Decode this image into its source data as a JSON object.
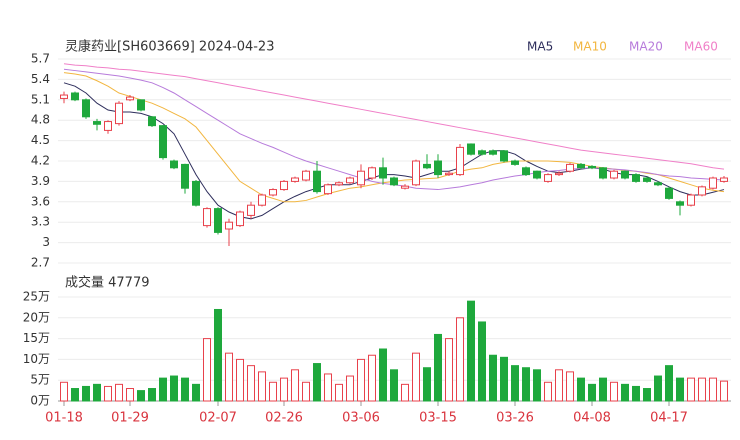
{
  "chart_data": {
    "type": "candlestick",
    "title": "灵康药业[SH603669] 2024-04-23",
    "categories": [
      "01-18",
      null,
      null,
      null,
      null,
      null,
      "01-29",
      null,
      null,
      null,
      null,
      null,
      null,
      null,
      "02-07",
      null,
      null,
      null,
      null,
      null,
      "02-26",
      null,
      null,
      null,
      null,
      null,
      null,
      "03-06",
      null,
      null,
      null,
      null,
      null,
      null,
      "03-15",
      null,
      null,
      null,
      null,
      null,
      null,
      "03-26",
      null,
      null,
      null,
      null,
      null,
      null,
      "04-08",
      null,
      null,
      null,
      null,
      null,
      null,
      "04-17",
      null,
      null,
      null,
      null,
      null
    ],
    "open": [
      5.12,
      5.2,
      5.1,
      4.78,
      4.65,
      4.75,
      5.1,
      5.1,
      4.85,
      4.72,
      4.2,
      4.15,
      3.9,
      3.25,
      3.5,
      3.2,
      3.25,
      3.4,
      3.55,
      3.7,
      3.78,
      3.9,
      3.92,
      4.05,
      3.72,
      3.85,
      3.88,
      3.85,
      3.95,
      4.1,
      3.95,
      3.8,
      3.85,
      4.15,
      4.2,
      4.0,
      4.0,
      4.45,
      4.35,
      4.35,
      4.35,
      4.2,
      4.1,
      4.05,
      3.9,
      4.0,
      4.05,
      4.15,
      4.12,
      4.1,
      3.95,
      4.05,
      4.0,
      3.95,
      3.88,
      3.8,
      3.6,
      3.55,
      3.7,
      3.8,
      3.9
    ],
    "high": [
      5.22,
      5.22,
      5.12,
      4.82,
      4.8,
      5.08,
      5.17,
      5.1,
      4.86,
      4.73,
      4.22,
      4.16,
      3.92,
      3.52,
      3.52,
      3.35,
      3.47,
      3.6,
      3.72,
      3.8,
      3.92,
      3.97,
      4.07,
      4.2,
      3.87,
      3.9,
      3.97,
      4.15,
      4.12,
      4.25,
      3.97,
      3.86,
      4.22,
      4.3,
      4.3,
      4.05,
      4.45,
      4.46,
      4.37,
      4.37,
      4.36,
      4.22,
      4.12,
      4.06,
      4.02,
      4.05,
      4.17,
      4.17,
      4.14,
      4.11,
      4.07,
      4.06,
      4.02,
      3.97,
      3.9,
      3.82,
      3.62,
      3.72,
      3.84,
      3.97,
      3.98
    ],
    "low": [
      5.05,
      5.08,
      4.82,
      4.65,
      4.6,
      4.72,
      5.08,
      4.93,
      4.7,
      4.22,
      4.08,
      3.72,
      3.53,
      3.22,
      3.12,
      2.95,
      3.23,
      3.35,
      3.53,
      3.68,
      3.76,
      3.88,
      3.9,
      3.72,
      3.7,
      3.83,
      3.86,
      3.8,
      3.92,
      3.85,
      3.83,
      3.78,
      3.83,
      4.08,
      3.95,
      3.98,
      3.98,
      4.28,
      4.28,
      4.28,
      4.18,
      4.13,
      3.98,
      3.93,
      3.88,
      3.98,
      4.03,
      4.08,
      4.08,
      3.93,
      3.93,
      3.93,
      3.88,
      3.88,
      3.83,
      3.63,
      3.4,
      3.53,
      3.68,
      3.78,
      3.88
    ],
    "close": [
      5.17,
      5.1,
      4.85,
      4.74,
      4.78,
      5.05,
      5.14,
      4.95,
      4.72,
      4.25,
      4.1,
      3.8,
      3.55,
      3.5,
      3.15,
      3.3,
      3.45,
      3.55,
      3.7,
      3.78,
      3.9,
      3.95,
      4.05,
      3.75,
      3.85,
      3.88,
      3.95,
      4.05,
      4.1,
      3.95,
      3.85,
      3.83,
      4.2,
      4.1,
      4.0,
      4.02,
      4.4,
      4.3,
      4.3,
      4.3,
      4.2,
      4.15,
      4.0,
      3.95,
      4.0,
      4.02,
      4.15,
      4.1,
      4.1,
      3.95,
      4.05,
      3.95,
      3.9,
      3.9,
      3.85,
      3.65,
      3.55,
      3.7,
      3.82,
      3.95,
      3.95
    ],
    "up_color": "#e8414b",
    "down_color": "#1ea83c",
    "ylim": [
      2.7,
      5.7
    ],
    "yticks": [
      2.7,
      3,
      3.3,
      3.6,
      3.9,
      4.2,
      4.5,
      4.8,
      5.1,
      5.4,
      5.7
    ],
    "grid": true,
    "ma": [
      {
        "name": "MA5",
        "color": "#2e2e5c",
        "values": [
          5.35,
          5.3,
          5.2,
          5.05,
          4.95,
          4.92,
          4.92,
          4.9,
          4.85,
          4.75,
          4.6,
          4.3,
          4.0,
          3.75,
          3.55,
          3.45,
          3.38,
          3.35,
          3.4,
          3.5,
          3.6,
          3.68,
          3.75,
          3.8,
          3.85,
          3.85,
          3.85,
          3.9,
          3.95,
          4.0,
          4.0,
          3.98,
          3.95,
          4.0,
          4.05,
          4.05,
          4.1,
          4.2,
          4.3,
          4.35,
          4.35,
          4.3,
          4.2,
          4.12,
          4.05,
          4.03,
          4.05,
          4.08,
          4.1,
          4.08,
          4.03,
          4.0,
          4.0,
          3.97,
          3.9,
          3.82,
          3.75,
          3.7,
          3.7,
          3.74,
          3.78
        ]
      },
      {
        "name": "MA10",
        "color": "#f2b640",
        "values": [
          5.5,
          5.48,
          5.45,
          5.38,
          5.3,
          5.2,
          5.15,
          5.1,
          5.05,
          4.98,
          4.9,
          4.82,
          4.7,
          4.5,
          4.3,
          4.1,
          3.9,
          3.8,
          3.7,
          3.65,
          3.6,
          3.6,
          3.62,
          3.67,
          3.72,
          3.76,
          3.8,
          3.82,
          3.85,
          3.88,
          3.9,
          3.92,
          3.93,
          3.94,
          3.95,
          4.0,
          4.05,
          4.08,
          4.1,
          4.15,
          4.18,
          4.2,
          4.2,
          4.2,
          4.2,
          4.19,
          4.18,
          4.15,
          4.12,
          4.1,
          4.08,
          4.06,
          4.05,
          4.02,
          4.0,
          3.95,
          3.9,
          3.85,
          3.8,
          3.77,
          3.75
        ]
      },
      {
        "name": "MA20",
        "color": "#b77bdb",
        "values": [
          5.55,
          5.53,
          5.51,
          5.49,
          5.47,
          5.45,
          5.42,
          5.39,
          5.35,
          5.28,
          5.2,
          5.1,
          5.0,
          4.9,
          4.8,
          4.7,
          4.6,
          4.53,
          4.46,
          4.4,
          4.33,
          4.26,
          4.2,
          4.15,
          4.1,
          4.05,
          4.0,
          3.95,
          3.9,
          3.87,
          3.85,
          3.83,
          3.8,
          3.79,
          3.78,
          3.8,
          3.82,
          3.85,
          3.88,
          3.92,
          3.95,
          3.98,
          4.0,
          4.03,
          4.05,
          4.06,
          4.08,
          4.09,
          4.1,
          4.09,
          4.08,
          4.07,
          4.05,
          4.03,
          4.0,
          3.98,
          3.97,
          3.95,
          3.94,
          3.93,
          3.92
        ]
      },
      {
        "name": "MA60",
        "color": "#f080c8",
        "values": [
          5.63,
          5.61,
          5.6,
          5.58,
          5.57,
          5.55,
          5.54,
          5.52,
          5.5,
          5.48,
          5.46,
          5.44,
          5.41,
          5.38,
          5.35,
          5.32,
          5.29,
          5.26,
          5.23,
          5.2,
          5.17,
          5.14,
          5.11,
          5.08,
          5.05,
          5.02,
          4.99,
          4.96,
          4.93,
          4.9,
          4.87,
          4.84,
          4.81,
          4.78,
          4.75,
          4.72,
          4.69,
          4.66,
          4.63,
          4.6,
          4.57,
          4.54,
          4.51,
          4.48,
          4.45,
          4.42,
          4.39,
          4.36,
          4.34,
          4.32,
          4.3,
          4.28,
          4.26,
          4.24,
          4.22,
          4.2,
          4.18,
          4.16,
          4.13,
          4.1,
          4.08
        ]
      }
    ],
    "volume": {
      "title": "成交量 47779",
      "values": [
        4.5,
        3,
        3.5,
        4,
        3.5,
        4,
        3,
        2.5,
        3,
        5.5,
        6,
        5.5,
        4,
        15,
        22,
        11.5,
        10,
        8.5,
        7,
        4.5,
        5.5,
        7.5,
        4.5,
        9,
        6.5,
        4,
        6,
        10,
        11,
        12.5,
        7.5,
        4,
        11.5,
        8,
        16,
        15,
        20,
        24,
        19,
        11,
        10.5,
        8.5,
        8,
        7.5,
        4.5,
        7.5,
        7,
        5.5,
        4,
        5.5,
        4.5,
        4,
        3.5,
        3,
        6,
        8.5,
        5.5,
        5.5,
        5.5,
        5.5,
        4.7779
      ],
      "ylim": [
        0,
        25
      ],
      "yticks": [
        {
          "value": 0,
          "label": "0万"
        },
        {
          "value": 5,
          "label": "5万"
        },
        {
          "value": 10,
          "label": "10万"
        },
        {
          "value": 15,
          "label": "15万"
        },
        {
          "value": 20,
          "label": "20万"
        },
        {
          "value": 25,
          "label": "25万"
        }
      ]
    }
  }
}
